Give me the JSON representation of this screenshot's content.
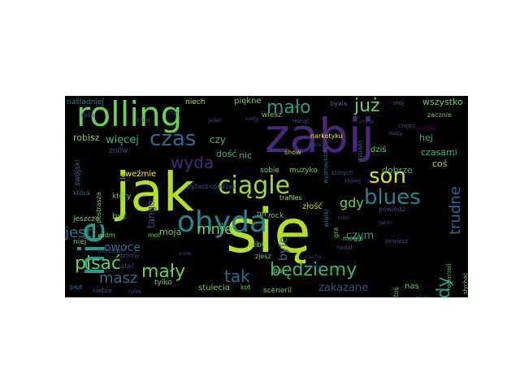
{
  "palette": {
    "yellow_green": "#b5de2b",
    "light_green": "#6ccd5a",
    "green": "#35b779",
    "teal": "#1f9e89",
    "blue": "#26828e",
    "steel": "#31688e",
    "indigo": "#3e4a89",
    "purple": "#482878",
    "dark_purple": "#440154",
    "yellow": "#fde725"
  },
  "words": [
    {
      "text": "jak",
      "color": "#b5de2b"
    },
    {
      "text": "się",
      "color": "#b5de2b"
    },
    {
      "text": "zabij",
      "color": "#482878"
    },
    {
      "text": "rolling",
      "color": "#6ccd5a"
    },
    {
      "text": "ohyda",
      "color": "#26828e"
    },
    {
      "text": "ciągle",
      "color": "#a0da39"
    },
    {
      "text": "nie",
      "color": "#2a9a8a"
    },
    {
      "text": "son",
      "color": "#d8e219"
    },
    {
      "text": "blues",
      "color": "#26828e"
    },
    {
      "text": "będziemy",
      "color": "#35b779"
    },
    {
      "text": "pisać",
      "color": "#6ccd5a"
    },
    {
      "text": "mały",
      "color": "#6ccd5a"
    },
    {
      "text": "prawdy",
      "color": "#1f9e89"
    },
    {
      "text": "czas",
      "color": "#31688e"
    },
    {
      "text": "mało",
      "color": "#2a9a8a"
    },
    {
      "text": "już",
      "color": "#6ccd5a"
    },
    {
      "text": "wyda",
      "color": "#482878"
    },
    {
      "text": "tak",
      "color": "#31688e"
    },
    {
      "text": "masz",
      "color": "#31688e"
    },
    {
      "text": "jest",
      "color": "#2c728e"
    },
    {
      "text": "mnie",
      "color": "#6ccd5a"
    },
    {
      "text": "gdy",
      "color": "#6ccd5a"
    },
    {
      "text": "trudne",
      "color": "#31688e"
    },
    {
      "text": "więcej",
      "color": "#35b779"
    },
    {
      "text": "byle",
      "color": "#31688e"
    },
    {
      "text": "czym",
      "color": "#1f9e89"
    },
    {
      "text": "zakazane",
      "color": "#3e4a89"
    },
    {
      "text": "owoce",
      "color": "#31688e"
    },
    {
      "text": "wszystko",
      "color": "#6ccd5a"
    },
    {
      "text": "robisz",
      "color": "#6ccd5a"
    },
    {
      "text": "tango",
      "color": "#3e4a89"
    },
    {
      "text": "czy",
      "color": "#35b779"
    },
    {
      "text": "dość",
      "color": "#35b779"
    },
    {
      "text": "hej",
      "color": "#35b779"
    },
    {
      "text": "czasami",
      "color": "#35b779"
    },
    {
      "text": "moja",
      "color": "#6ccd5a"
    },
    {
      "text": "nic",
      "color": "#35b779"
    },
    {
      "text": "niech",
      "color": "#b5de2b"
    },
    {
      "text": "piękne",
      "color": "#6ccd5a"
    },
    {
      "text": "ryta",
      "color": "#3e4a89"
    },
    {
      "text": "znów",
      "color": "#3e4a89"
    },
    {
      "text": "weźmie",
      "color": "#fde725"
    },
    {
      "text": "swojski",
      "color": "#31688e"
    },
    {
      "text": "sobie",
      "color": "#6ccd5a"
    },
    {
      "text": "muzyko",
      "color": "#6ccd5a"
    },
    {
      "text": "dobrze",
      "color": "#35b779"
    },
    {
      "text": "dziś",
      "color": "#6ccd5a"
    },
    {
      "text": "coś",
      "color": "#b5de2b"
    },
    {
      "text": "złość",
      "color": "#b5de2b"
    },
    {
      "text": "wiesz",
      "color": "#6ccd5a"
    },
    {
      "text": "bywa",
      "color": "#31688e"
    },
    {
      "text": "moj",
      "color": "#31688e"
    },
    {
      "text": "zacznie",
      "color": "#6ccd5a"
    },
    {
      "text": "podlej",
      "color": "#440154"
    },
    {
      "text": "chyba",
      "color": "#3e4a89"
    },
    {
      "text": "narkotyku",
      "color": "#fde725"
    },
    {
      "text": "show",
      "color": "#b5de2b"
    },
    {
      "text": "trafiles",
      "color": "#b5de2b"
    },
    {
      "text": "rock",
      "color": "#6ccd5a"
    },
    {
      "text": "ref",
      "color": "#6ccd5a"
    },
    {
      "text": "niby",
      "color": "#6ccd5a"
    },
    {
      "text": "zjesz",
      "color": "#6ccd5a"
    },
    {
      "text": "bal",
      "color": "#6ccd5a"
    },
    {
      "text": "pytasz",
      "color": "#3e4a89"
    },
    {
      "text": "spojrzeć",
      "color": "#3e4a89"
    },
    {
      "text": "być",
      "color": "#6ccd5a"
    },
    {
      "text": "który",
      "color": "#6ccd5a"
    },
    {
      "text": "jeszcze",
      "color": "#6ccd5a"
    },
    {
      "text": "niej",
      "color": "#6ccd5a"
    },
    {
      "text": "widm",
      "color": "#6ccd5a"
    },
    {
      "text": "mol",
      "color": "#6ccd5a"
    },
    {
      "text": "latać",
      "color": "#3e4a89"
    },
    {
      "text": "dzimny",
      "color": "#3e4a89"
    },
    {
      "text": "bierzesz",
      "color": "#3e4a89"
    },
    {
      "text": "tylko",
      "color": "#6ccd5a"
    },
    {
      "text": "stulecia",
      "color": "#6ccd5a"
    },
    {
      "text": "kot",
      "color": "#6ccd5a"
    },
    {
      "text": "scenerii",
      "color": "#6ccd5a"
    },
    {
      "text": "nas",
      "color": "#6ccd5a"
    },
    {
      "text": "mogło",
      "color": "#6ccd5a"
    },
    {
      "text": "powiedz",
      "color": "#3e4a89"
    },
    {
      "text": "powiesz",
      "color": "#3e4a89"
    },
    {
      "text": "ktoś",
      "color": "#6ccd5a"
    },
    {
      "text": "słychać",
      "color": "#6ccd5a"
    },
    {
      "text": "nadal",
      "color": "#3e4a89"
    },
    {
      "text": "której",
      "color": "#3e4a89"
    },
    {
      "text": "których",
      "color": "#3e4a89"
    },
    {
      "text": "płot",
      "color": "#31688e"
    },
    {
      "text": "ciebie",
      "color": "#3e4a89"
    },
    {
      "text": "rolla",
      "color": "#3e4a89"
    },
    {
      "text": "kulą",
      "color": "#3e4a89"
    },
    {
      "text": "rok",
      "color": "#3e4a89"
    },
    {
      "text": "gra",
      "color": "#6ccd5a"
    },
    {
      "text": "cie",
      "color": "#6ccd5a"
    },
    {
      "text": "postrasza",
      "color": "#6ccd5a"
    },
    {
      "text": "która",
      "color": "#31688e"
    },
    {
      "text": "wielki",
      "color": "#31688e"
    },
    {
      "text": "wypada",
      "color": "#31688e"
    },
    {
      "text": "wyprowadzić",
      "color": "#31688e"
    },
    {
      "text": "naśladniej",
      "color": "#26828e"
    },
    {
      "text": "minąc",
      "color": "#3e4a89"
    },
    {
      "text": "ktore",
      "color": "#3e4a89"
    },
    {
      "text": "zmrok",
      "color": "#3e4a89"
    },
    {
      "text": "ciuchy",
      "color": "#3e4a89"
    },
    {
      "text": "ładne",
      "color": "#3e4a89"
    },
    {
      "text": "znów",
      "color": "#3e4a89"
    },
    {
      "text": "nimi",
      "color": "#3e4a89"
    },
    {
      "text": "rockn'roll",
      "color": "#6ccd5a"
    },
    {
      "text": "ostatni",
      "color": "#3e4a89"
    },
    {
      "text": "duszy",
      "color": "#3e4a89"
    },
    {
      "text": "takim",
      "color": "#3e4a89"
    },
    {
      "text": "kiedy",
      "color": "#3e4a89"
    },
    {
      "text": "jeden",
      "color": "#3e4a89"
    }
  ]
}
